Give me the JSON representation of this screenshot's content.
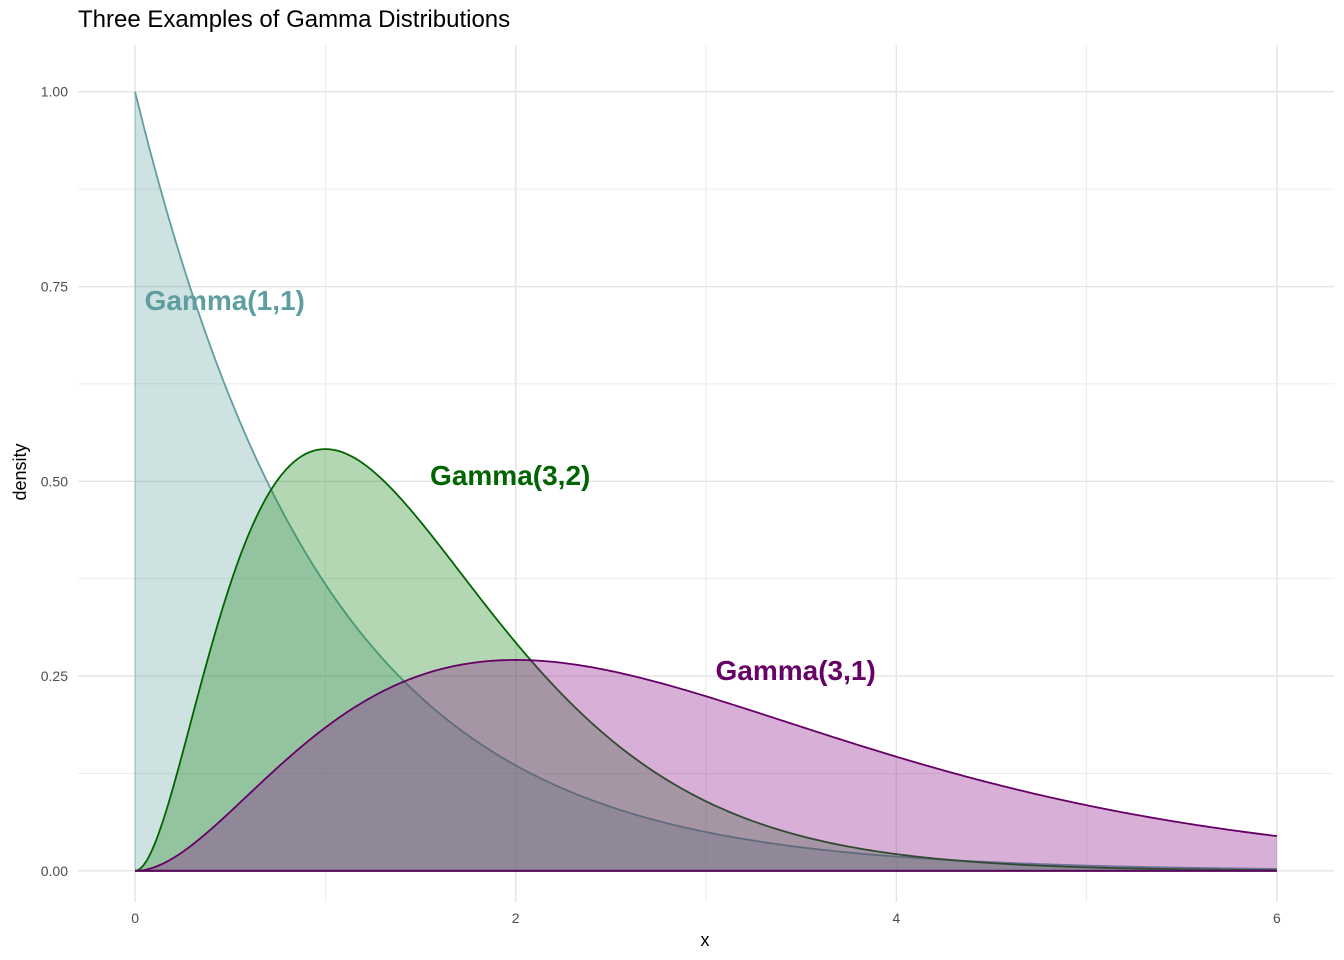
{
  "chart_data": {
    "type": "area",
    "title": "Three Examples of Gamma Distributions",
    "xlabel": "x",
    "ylabel": "density",
    "xlim": [
      -0.3,
      6.3
    ],
    "ylim": [
      -0.04,
      1.06
    ],
    "x_ticks": [
      0,
      2,
      4,
      6
    ],
    "x_tick_labels": [
      "0",
      "2",
      "4",
      "6"
    ],
    "y_ticks": [
      0,
      0.25,
      0.5,
      0.75,
      1.0
    ],
    "y_tick_labels": [
      "0.00",
      "0.25",
      "0.50",
      "0.75",
      "1.00"
    ],
    "grid": true,
    "x_range": [
      0,
      6
    ],
    "series": [
      {
        "name": "Gamma(1,1)",
        "shape": 1,
        "rate": 1,
        "line_color": "#5f9ea0",
        "fill_color": "#5f9ea0",
        "fill_opacity": 0.3,
        "label_x": 0.05,
        "label_y": 0.72
      },
      {
        "name": "Gamma(3,2)",
        "shape": 3,
        "rate": 2,
        "line_color": "#006400",
        "fill_color": "#228b22",
        "fill_opacity": 0.35,
        "label_x": 1.55,
        "label_y": 0.495
      },
      {
        "name": "Gamma(3,1)",
        "shape": 3,
        "rate": 1,
        "line_color": "#660066",
        "fill_color": "#8b1a8b",
        "fill_opacity": 0.35,
        "label_x": 3.05,
        "label_y": 0.245
      }
    ]
  }
}
